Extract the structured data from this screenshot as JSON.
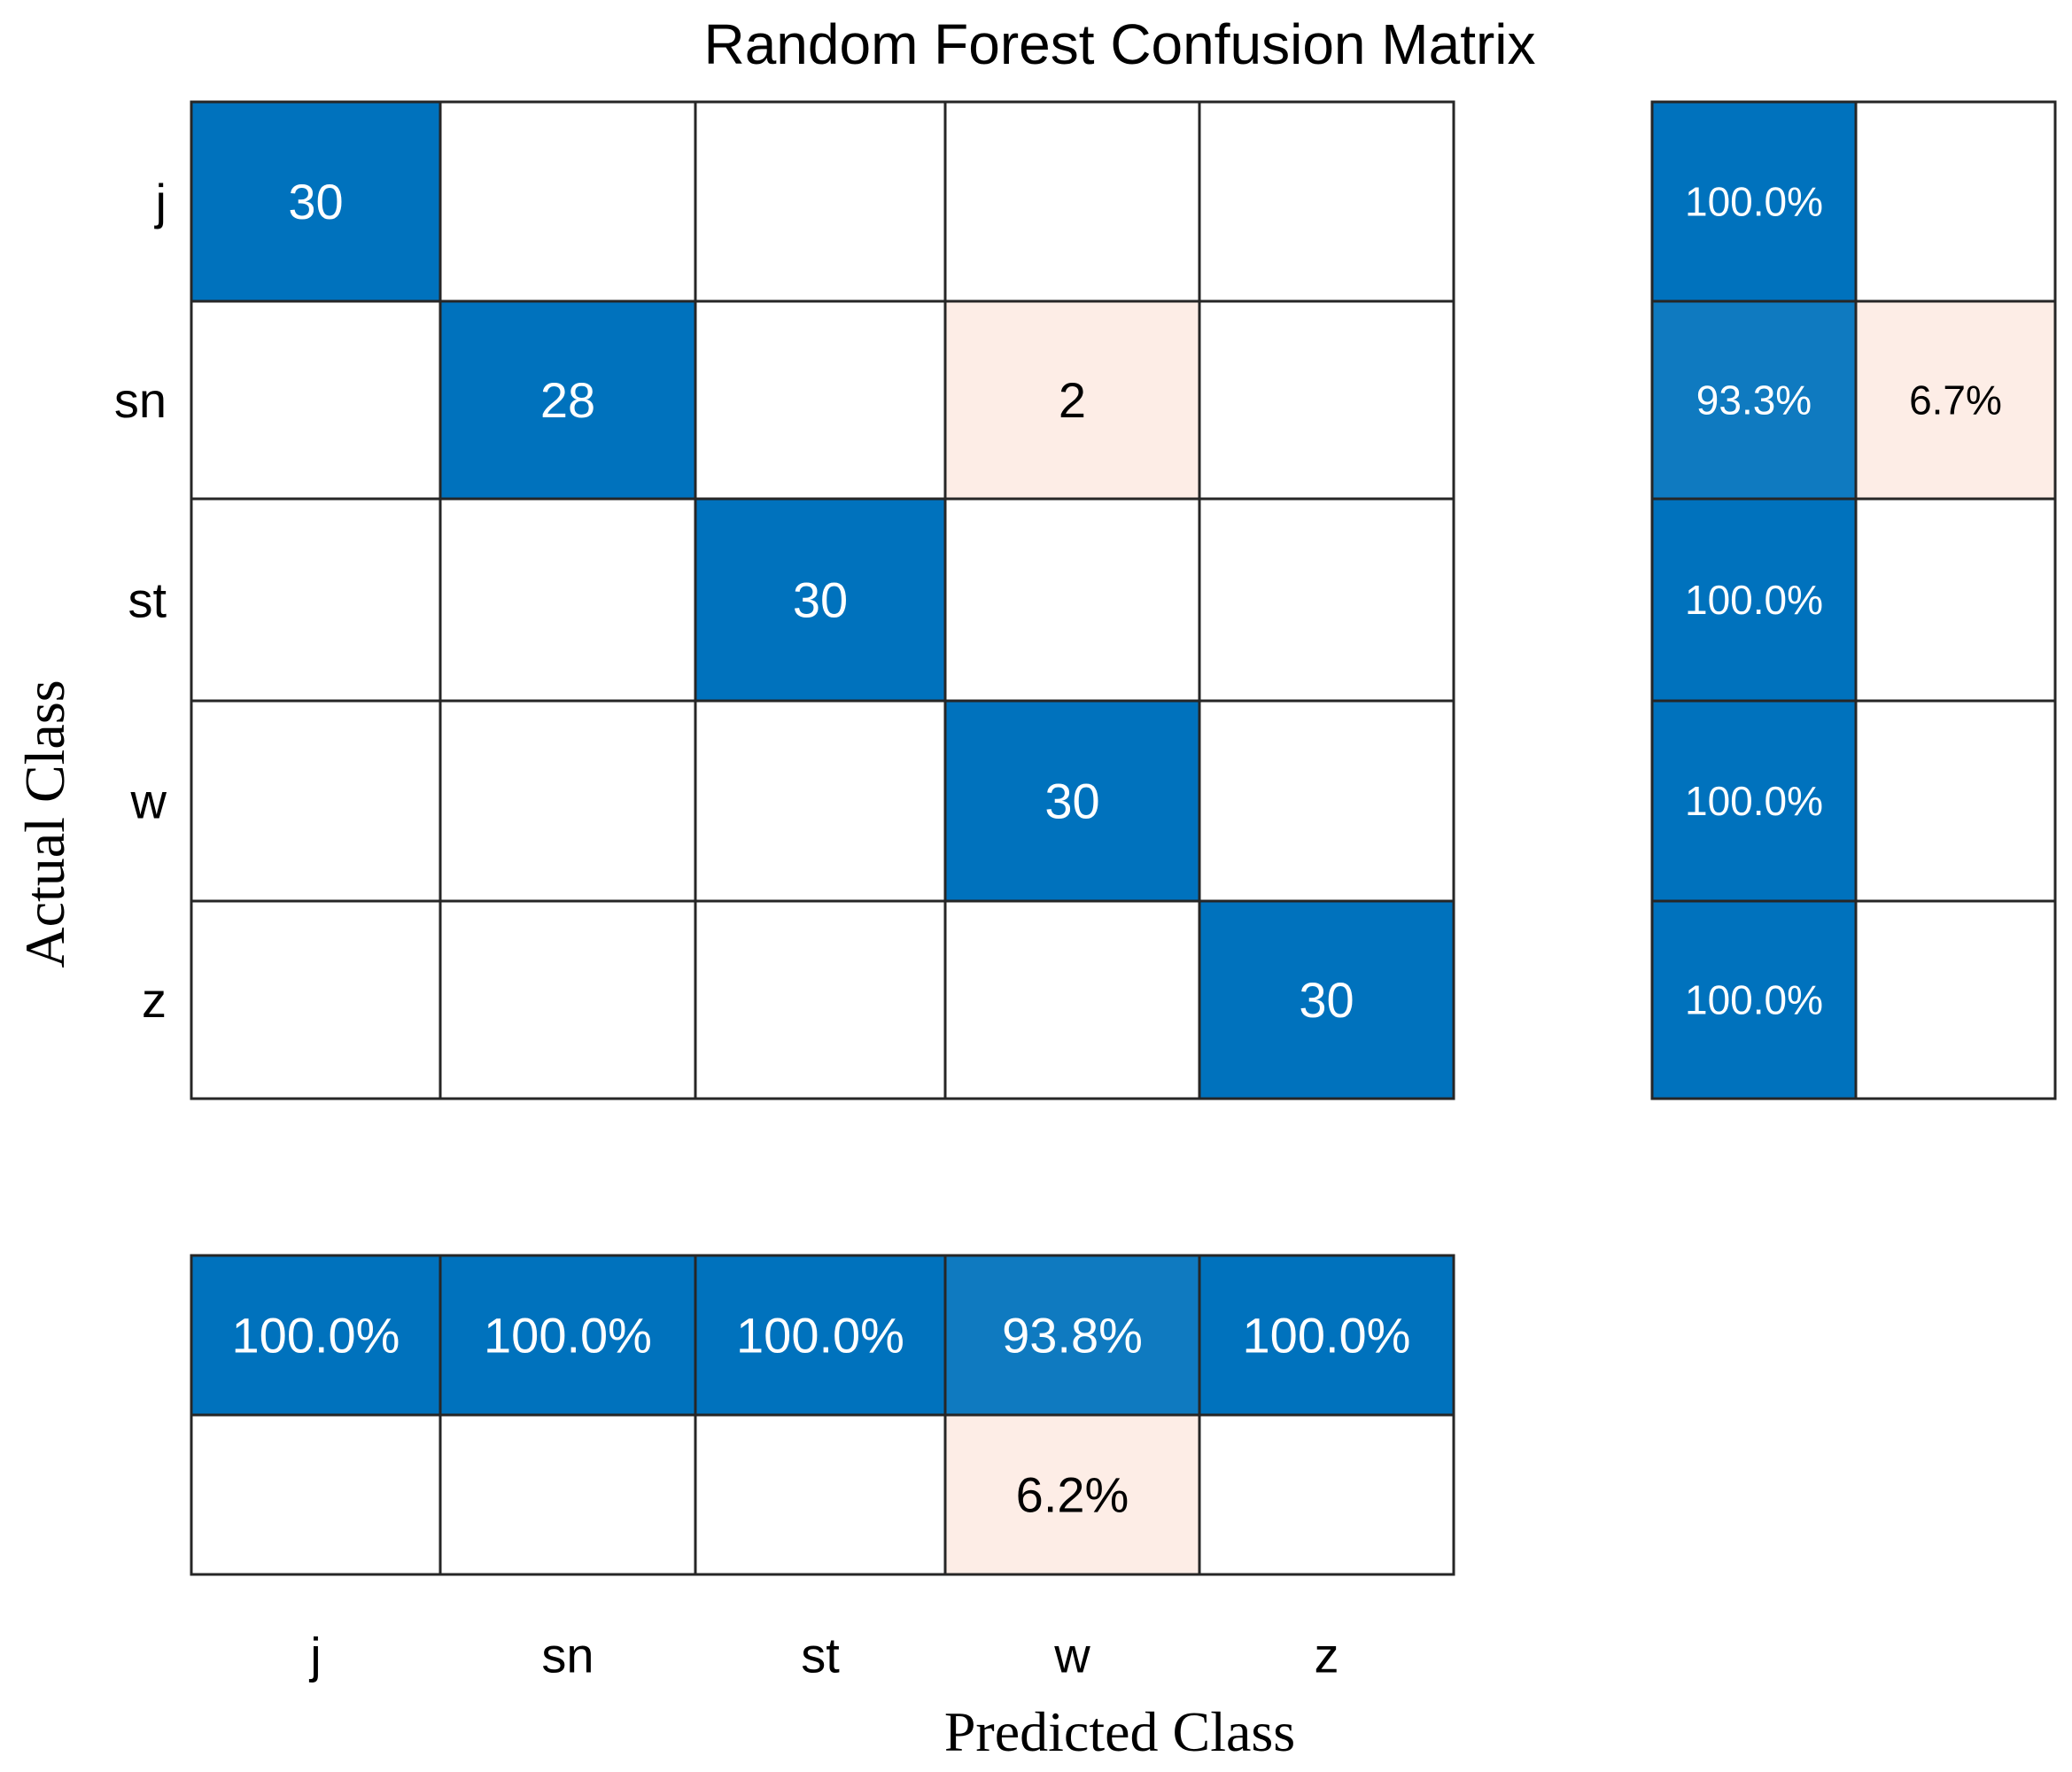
{
  "chart_data": {
    "type": "heatmap",
    "title": "Random Forest Confusion Matrix",
    "xlabel": "Predicted Class",
    "ylabel": "Actual Class",
    "classes": [
      "j",
      "sn",
      "st",
      "w",
      "z"
    ],
    "matrix": [
      [
        30,
        0,
        0,
        0,
        0
      ],
      [
        0,
        28,
        0,
        2,
        0
      ],
      [
        0,
        0,
        30,
        0,
        0
      ],
      [
        0,
        0,
        0,
        30,
        0
      ],
      [
        0,
        0,
        0,
        0,
        30
      ]
    ],
    "row_summary": {
      "correct": [
        "100.0%",
        "93.3%",
        "100.0%",
        "100.0%",
        "100.0%"
      ],
      "incorrect": [
        "",
        "6.7%",
        "",
        "",
        ""
      ],
      "correct_values": [
        100.0,
        93.3,
        100.0,
        100.0,
        100.0
      ],
      "incorrect_values": [
        0,
        6.7,
        0,
        0,
        0
      ]
    },
    "column_summary": {
      "correct": [
        "100.0%",
        "100.0%",
        "100.0%",
        "93.8%",
        "100.0%"
      ],
      "incorrect": [
        "",
        "",
        "",
        "6.2%",
        ""
      ],
      "correct_values": [
        100.0,
        100.0,
        100.0,
        93.8,
        100.0
      ],
      "incorrect_values": [
        0,
        0,
        0,
        6.2,
        0
      ]
    },
    "colors": {
      "diagonal": "#0072BD",
      "summary_correct_full": "#0072BD",
      "summary_correct_partial": "#0F7AC0",
      "off_diagonal": "#FDEDE6",
      "empty": "#FFFFFF",
      "grid": "#262626"
    }
  }
}
